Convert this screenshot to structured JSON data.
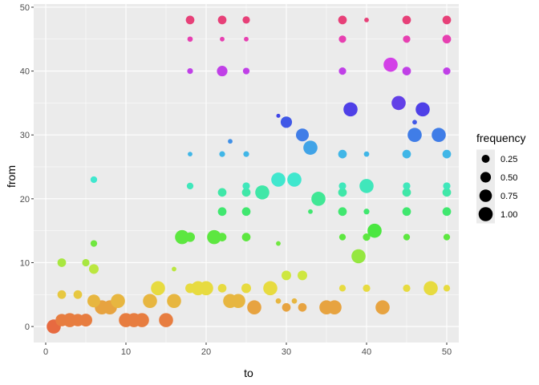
{
  "chart_data": {
    "type": "scatter",
    "title": "",
    "xlabel": "to",
    "ylabel": "from",
    "xlim": [
      -1.5,
      51.5
    ],
    "ylim": [
      -2.5,
      50.5
    ],
    "x_ticks": [
      0,
      10,
      20,
      30,
      40,
      50
    ],
    "y_ticks": [
      0,
      10,
      20,
      30,
      40,
      50
    ],
    "grid": true,
    "panel_background": "#ebebeb",
    "grid_color": "#ffffff",
    "size_legend": {
      "title": "frequency",
      "position": "right",
      "entries": [
        {
          "label": "0.25",
          "value": 0.25
        },
        {
          "label": "0.50",
          "value": 0.5
        },
        {
          "label": "0.75",
          "value": 0.75
        },
        {
          "label": "1.00",
          "value": 1.0
        }
      ]
    },
    "color_encoding": "from (continuous hue, red at 0 to pink at 48)",
    "points": [
      {
        "x": 1,
        "y": 0,
        "frequency": 1.0
      },
      {
        "x": 2,
        "y": 1,
        "frequency": 0.75
      },
      {
        "x": 3,
        "y": 1,
        "frequency": 1.0
      },
      {
        "x": 4,
        "y": 1,
        "frequency": 0.75
      },
      {
        "x": 5,
        "y": 1,
        "frequency": 0.8
      },
      {
        "x": 10,
        "y": 1,
        "frequency": 1.0
      },
      {
        "x": 11,
        "y": 1,
        "frequency": 1.0
      },
      {
        "x": 12,
        "y": 1,
        "frequency": 1.0
      },
      {
        "x": 15,
        "y": 1,
        "frequency": 1.0
      },
      {
        "x": 7,
        "y": 3,
        "frequency": 1.0
      },
      {
        "x": 8,
        "y": 3,
        "frequency": 1.0
      },
      {
        "x": 26,
        "y": 3,
        "frequency": 1.0
      },
      {
        "x": 30,
        "y": 3,
        "frequency": 0.3
      },
      {
        "x": 32,
        "y": 3,
        "frequency": 0.3
      },
      {
        "x": 35,
        "y": 3,
        "frequency": 1.0
      },
      {
        "x": 36,
        "y": 3,
        "frequency": 1.0
      },
      {
        "x": 42,
        "y": 3,
        "frequency": 1.0
      },
      {
        "x": 6,
        "y": 4,
        "frequency": 0.8
      },
      {
        "x": 9,
        "y": 4,
        "frequency": 1.0
      },
      {
        "x": 13,
        "y": 4,
        "frequency": 1.0
      },
      {
        "x": 16,
        "y": 4,
        "frequency": 1.0
      },
      {
        "x": 23,
        "y": 4,
        "frequency": 1.0
      },
      {
        "x": 24,
        "y": 4,
        "frequency": 1.0
      },
      {
        "x": 29,
        "y": 4,
        "frequency": 0.08
      },
      {
        "x": 31,
        "y": 4,
        "frequency": 0.08
      },
      {
        "x": 2,
        "y": 5,
        "frequency": 0.3
      },
      {
        "x": 4,
        "y": 5,
        "frequency": 0.3
      },
      {
        "x": 14,
        "y": 6,
        "frequency": 1.0
      },
      {
        "x": 18,
        "y": 6,
        "frequency": 0.4
      },
      {
        "x": 19,
        "y": 6,
        "frequency": 1.0
      },
      {
        "x": 20,
        "y": 6,
        "frequency": 1.0
      },
      {
        "x": 22,
        "y": 6,
        "frequency": 0.3
      },
      {
        "x": 25,
        "y": 6,
        "frequency": 0.4
      },
      {
        "x": 28,
        "y": 6,
        "frequency": 1.0
      },
      {
        "x": 37,
        "y": 6,
        "frequency": 0.15
      },
      {
        "x": 40,
        "y": 6,
        "frequency": 0.2
      },
      {
        "x": 45,
        "y": 6,
        "frequency": 0.2
      },
      {
        "x": 48,
        "y": 6,
        "frequency": 1.0
      },
      {
        "x": 50,
        "y": 6,
        "frequency": 0.15
      },
      {
        "x": 30,
        "y": 8,
        "frequency": 0.4
      },
      {
        "x": 32,
        "y": 8,
        "frequency": 0.4
      },
      {
        "x": 6,
        "y": 9,
        "frequency": 0.4
      },
      {
        "x": 16,
        "y": 9,
        "frequency": 0.05
      },
      {
        "x": 2,
        "y": 10,
        "frequency": 0.3
      },
      {
        "x": 5,
        "y": 10,
        "frequency": 0.2
      },
      {
        "x": 39,
        "y": 11,
        "frequency": 1.0
      },
      {
        "x": 6,
        "y": 13,
        "frequency": 0.15
      },
      {
        "x": 29,
        "y": 13,
        "frequency": 0.05
      },
      {
        "x": 17,
        "y": 14,
        "frequency": 1.0
      },
      {
        "x": 18,
        "y": 14,
        "frequency": 0.4
      },
      {
        "x": 21,
        "y": 14,
        "frequency": 1.0
      },
      {
        "x": 22,
        "y": 14,
        "frequency": 0.3
      },
      {
        "x": 25,
        "y": 14,
        "frequency": 0.3
      },
      {
        "x": 37,
        "y": 14,
        "frequency": 0.15
      },
      {
        "x": 40,
        "y": 14,
        "frequency": 0.2
      },
      {
        "x": 45,
        "y": 14,
        "frequency": 0.15
      },
      {
        "x": 50,
        "y": 14,
        "frequency": 0.15
      },
      {
        "x": 41,
        "y": 15,
        "frequency": 1.0
      },
      {
        "x": 22,
        "y": 18,
        "frequency": 0.3
      },
      {
        "x": 25,
        "y": 18,
        "frequency": 0.3
      },
      {
        "x": 33,
        "y": 18,
        "frequency": 0.05
      },
      {
        "x": 37,
        "y": 18,
        "frequency": 0.3
      },
      {
        "x": 40,
        "y": 18,
        "frequency": 0.1
      },
      {
        "x": 45,
        "y": 18,
        "frequency": 0.3
      },
      {
        "x": 50,
        "y": 18,
        "frequency": 0.3
      },
      {
        "x": 34,
        "y": 20,
        "frequency": 1.0
      },
      {
        "x": 22,
        "y": 21,
        "frequency": 0.3
      },
      {
        "x": 25,
        "y": 21,
        "frequency": 0.3
      },
      {
        "x": 27,
        "y": 21,
        "frequency": 1.0
      },
      {
        "x": 37,
        "y": 21,
        "frequency": 0.3
      },
      {
        "x": 45,
        "y": 21,
        "frequency": 0.3
      },
      {
        "x": 50,
        "y": 21,
        "frequency": 0.3
      },
      {
        "x": 18,
        "y": 22,
        "frequency": 0.15
      },
      {
        "x": 25,
        "y": 22,
        "frequency": 0.2
      },
      {
        "x": 37,
        "y": 22,
        "frequency": 0.2
      },
      {
        "x": 40,
        "y": 22,
        "frequency": 1.0
      },
      {
        "x": 45,
        "y": 22,
        "frequency": 0.2
      },
      {
        "x": 50,
        "y": 22,
        "frequency": 0.2
      },
      {
        "x": 6,
        "y": 23,
        "frequency": 0.15
      },
      {
        "x": 29,
        "y": 23,
        "frequency": 1.0
      },
      {
        "x": 31,
        "y": 23,
        "frequency": 1.0
      },
      {
        "x": 18,
        "y": 27,
        "frequency": 0.05
      },
      {
        "x": 22,
        "y": 27,
        "frequency": 0.1
      },
      {
        "x": 25,
        "y": 27,
        "frequency": 0.1
      },
      {
        "x": 37,
        "y": 27,
        "frequency": 0.3
      },
      {
        "x": 40,
        "y": 27,
        "frequency": 0.08
      },
      {
        "x": 45,
        "y": 27,
        "frequency": 0.3
      },
      {
        "x": 50,
        "y": 27,
        "frequency": 0.3
      },
      {
        "x": 33,
        "y": 28,
        "frequency": 1.0
      },
      {
        "x": 23,
        "y": 29,
        "frequency": 0.05
      },
      {
        "x": 32,
        "y": 30,
        "frequency": 0.8
      },
      {
        "x": 46,
        "y": 30,
        "frequency": 1.0
      },
      {
        "x": 49,
        "y": 30,
        "frequency": 1.0
      },
      {
        "x": 46,
        "y": 32,
        "frequency": 0.05
      },
      {
        "x": 30,
        "y": 32,
        "frequency": 0.6
      },
      {
        "x": 29,
        "y": 33,
        "frequency": 0.03
      },
      {
        "x": 38,
        "y": 34,
        "frequency": 1.0
      },
      {
        "x": 47,
        "y": 34,
        "frequency": 1.0
      },
      {
        "x": 44,
        "y": 35,
        "frequency": 1.0
      },
      {
        "x": 18,
        "y": 40,
        "frequency": 0.1
      },
      {
        "x": 22,
        "y": 40,
        "frequency": 0.5
      },
      {
        "x": 25,
        "y": 40,
        "frequency": 0.15
      },
      {
        "x": 37,
        "y": 40,
        "frequency": 0.2
      },
      {
        "x": 45,
        "y": 40,
        "frequency": 0.3
      },
      {
        "x": 50,
        "y": 40,
        "frequency": 0.2
      },
      {
        "x": 43,
        "y": 41,
        "frequency": 1.0
      },
      {
        "x": 18,
        "y": 45,
        "frequency": 0.08
      },
      {
        "x": 22,
        "y": 45,
        "frequency": 0.05
      },
      {
        "x": 25,
        "y": 45,
        "frequency": 0.05
      },
      {
        "x": 37,
        "y": 45,
        "frequency": 0.2
      },
      {
        "x": 45,
        "y": 45,
        "frequency": 0.2
      },
      {
        "x": 50,
        "y": 45,
        "frequency": 0.3
      },
      {
        "x": 18,
        "y": 48,
        "frequency": 0.3
      },
      {
        "x": 22,
        "y": 48,
        "frequency": 0.3
      },
      {
        "x": 25,
        "y": 48,
        "frequency": 0.2
      },
      {
        "x": 37,
        "y": 48,
        "frequency": 0.3
      },
      {
        "x": 40,
        "y": 48,
        "frequency": 0.05
      },
      {
        "x": 45,
        "y": 48,
        "frequency": 0.3
      },
      {
        "x": 50,
        "y": 48,
        "frequency": 0.3
      }
    ]
  }
}
